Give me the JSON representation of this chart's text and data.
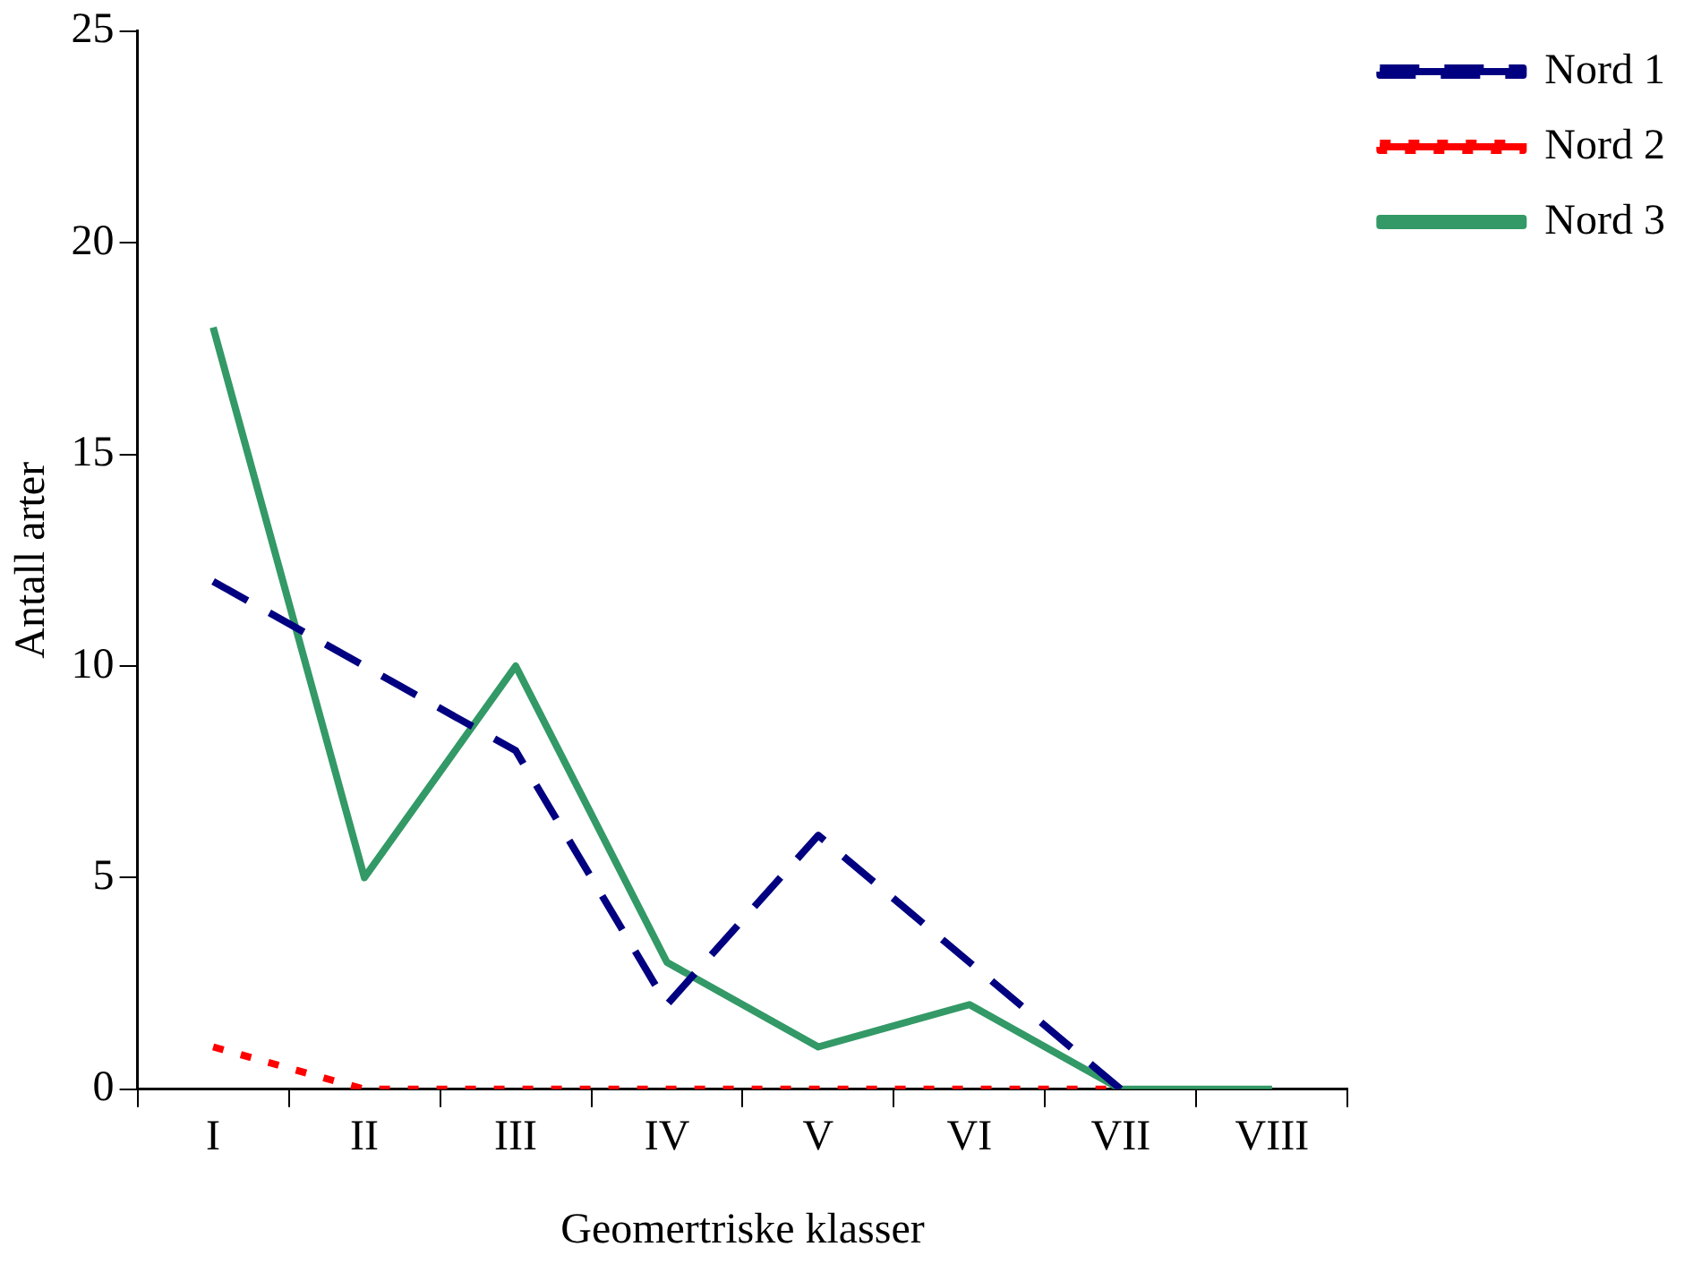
{
  "chart_data": {
    "type": "line",
    "xlabel": "Geomertriske klasser",
    "ylabel": "Antall arter",
    "categories": [
      "I",
      "II",
      "III",
      "IV",
      "V",
      "VI",
      "VII",
      "VIII"
    ],
    "ylim": [
      0,
      25
    ],
    "yticks": [
      0,
      5,
      10,
      15,
      20,
      25
    ],
    "grid": false,
    "legend": "top right",
    "marker": "none",
    "series": [
      {
        "name": "Nord 1",
        "color": "#000080",
        "line_style": "dashed",
        "values": [
          12,
          10,
          8,
          2,
          6,
          3,
          0,
          null
        ]
      },
      {
        "name": "Nord 2",
        "color": "#ff0000",
        "line_style": "dotted",
        "values": [
          1,
          0,
          0,
          0,
          0,
          0,
          0,
          null
        ]
      },
      {
        "name": "Nord 3",
        "color": "#339966",
        "line_style": "solid",
        "values": [
          18,
          5,
          10,
          3,
          1,
          2,
          0,
          0
        ]
      }
    ]
  }
}
